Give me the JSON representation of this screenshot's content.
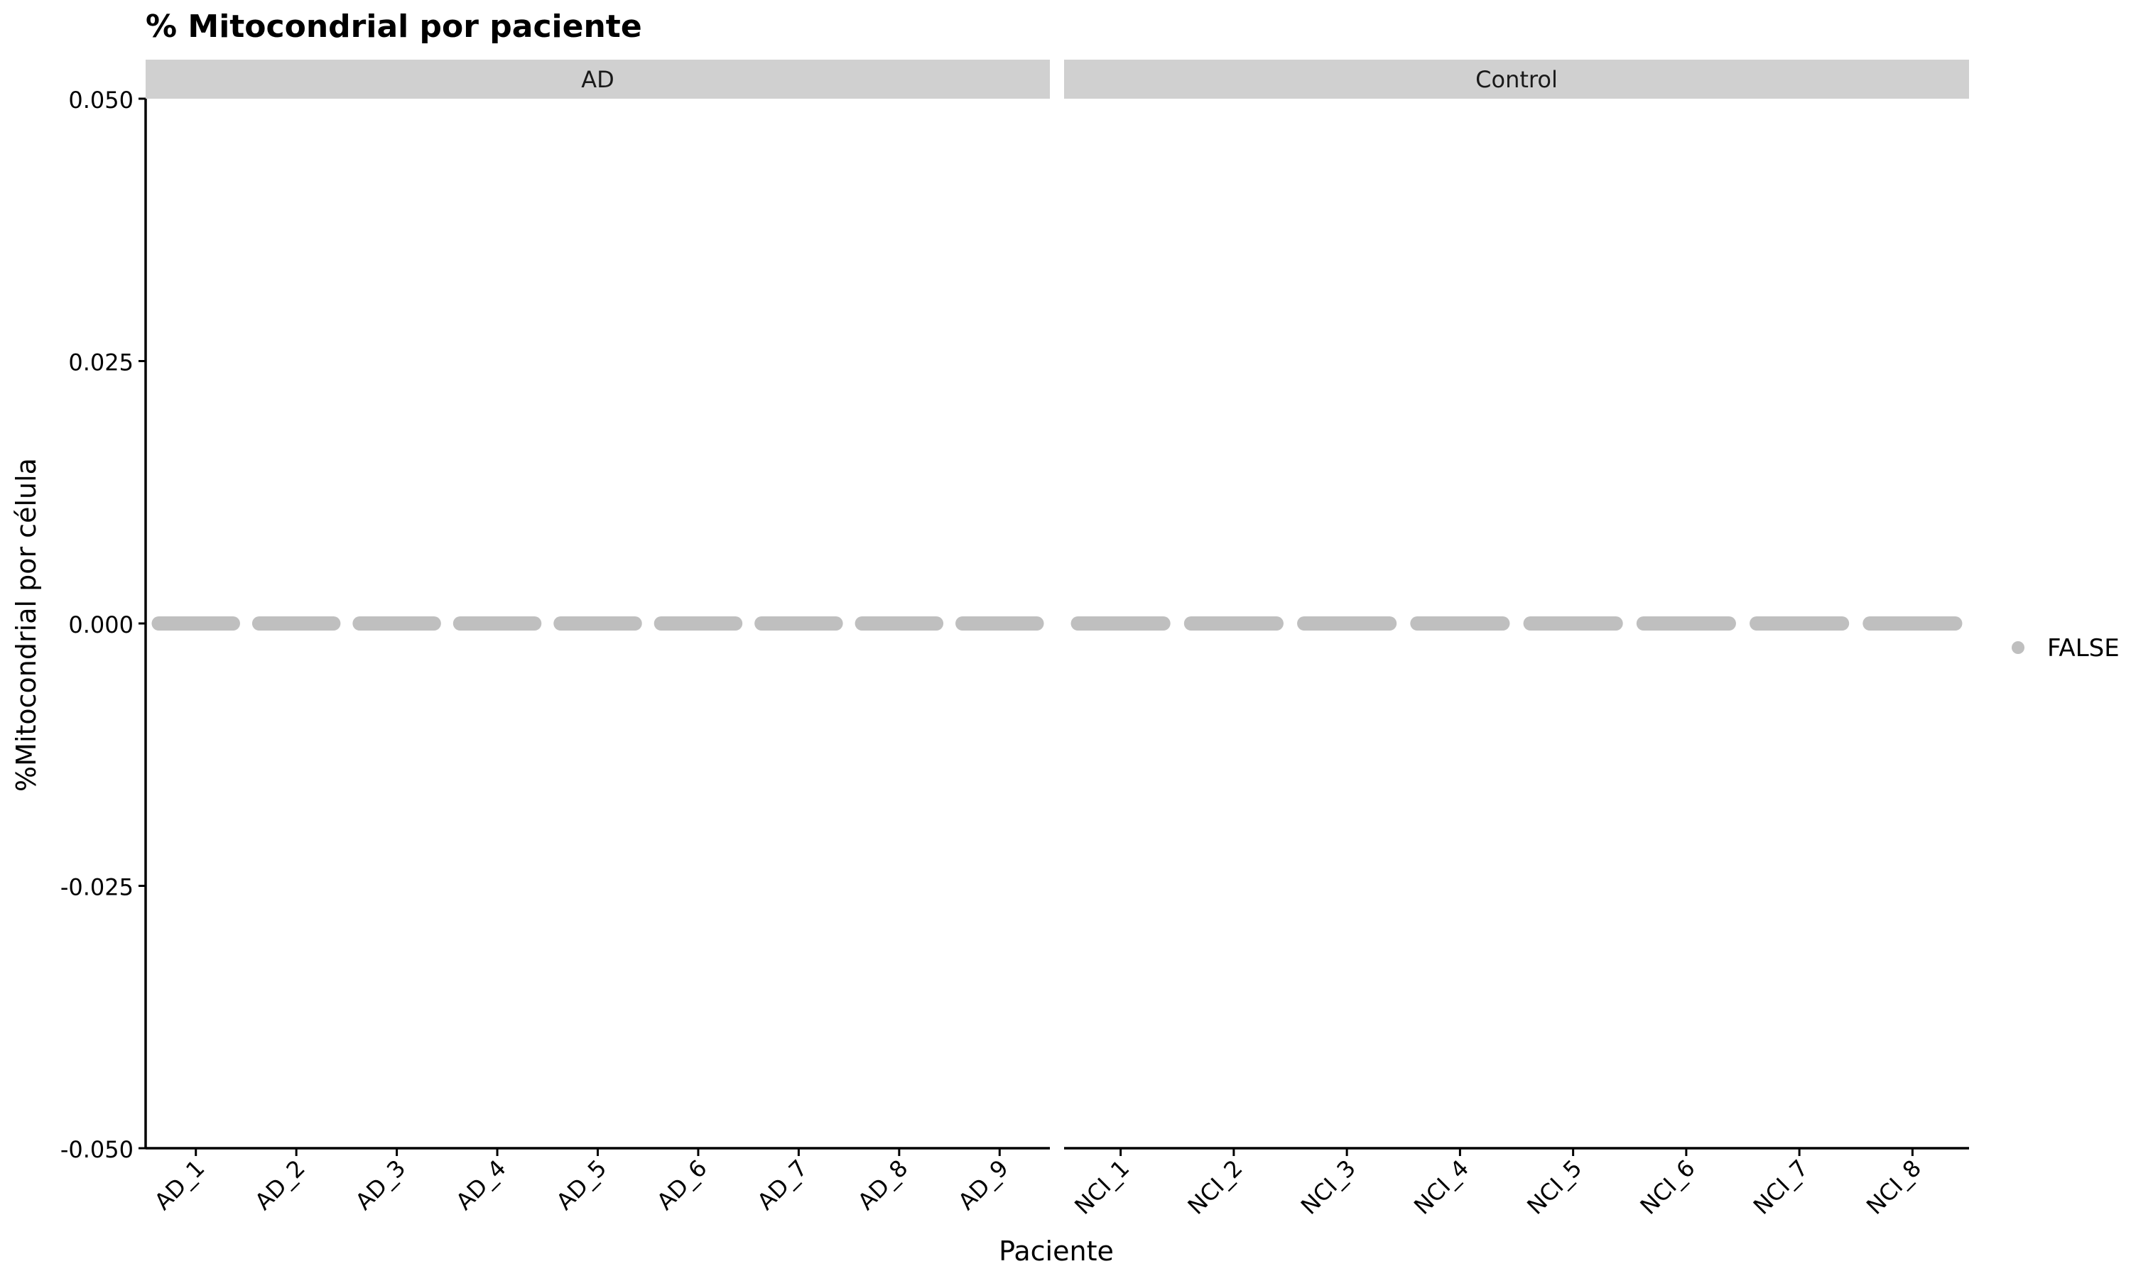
{
  "chart_data": {
    "type": "scatter",
    "title": "% Mitocondrial por paciente",
    "xlabel": "Paciente",
    "ylabel": "%Mitocondrial por célula",
    "ylim": [
      -0.05,
      0.05
    ],
    "yticks": [
      0.05,
      0.025,
      0.0,
      -0.025,
      -0.05
    ],
    "ytick_labels": [
      "0.050",
      "0.025",
      "0.000",
      "-0.025",
      "-0.050"
    ],
    "grid": false,
    "legend": {
      "position": "right",
      "entries": [
        {
          "label": "FALSE",
          "color": "#bfbfbf"
        }
      ]
    },
    "point_color": "#bfbfbf",
    "facet_strip_color": "#d0d0d0",
    "facets": [
      {
        "strip_label": "AD",
        "categories": [
          "AD_1",
          "AD_2",
          "AD_3",
          "AD_4",
          "AD_5",
          "AD_6",
          "AD_7",
          "AD_8",
          "AD_9"
        ],
        "values": [
          0,
          0,
          0,
          0,
          0,
          0,
          0,
          0,
          0
        ]
      },
      {
        "strip_label": "Control",
        "categories": [
          "NCI_1",
          "NCI_2",
          "NCI_3",
          "NCI_4",
          "NCI_5",
          "NCI_6",
          "NCI_7",
          "NCI_8"
        ],
        "values": [
          0,
          0,
          0,
          0,
          0,
          0,
          0,
          0
        ]
      }
    ]
  }
}
